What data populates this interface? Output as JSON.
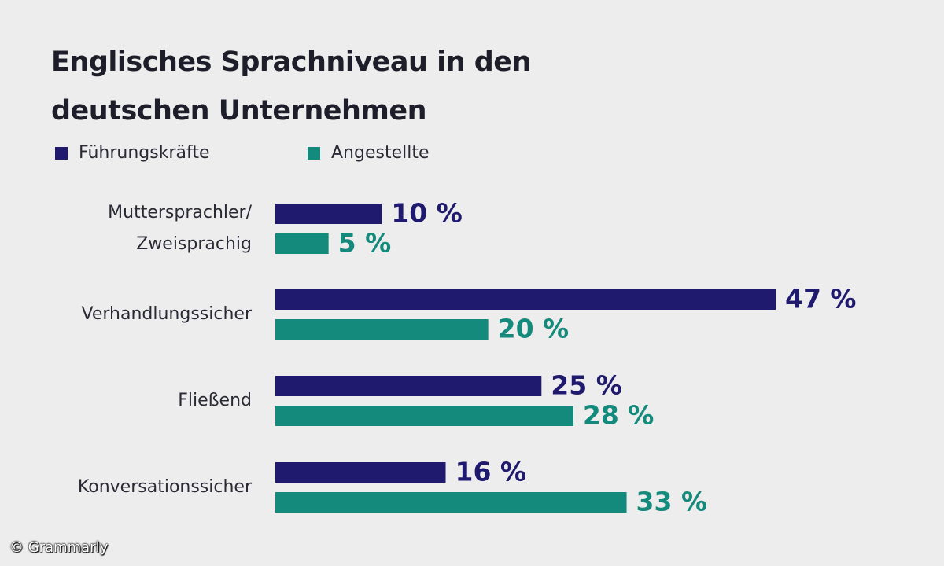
{
  "chart_data": {
    "type": "bar",
    "orientation": "horizontal",
    "title_lines": [
      "Englisches Sprachniveau in den",
      "deutschen Unternehmen"
    ],
    "title": "Englisches Sprachniveau in den deutschen Unternehmen",
    "categories": [
      [
        "Muttersprachler/",
        "Zweisprachig"
      ],
      [
        "Verhandlungssicher"
      ],
      [
        "Fließend"
      ],
      [
        "Konversationssicher"
      ]
    ],
    "series": [
      {
        "name": "Führungskräfte",
        "color": "#201a6e",
        "values": [
          10,
          47,
          25,
          16
        ],
        "labels": [
          "10 %",
          "47 %",
          "25 %",
          "16 %"
        ]
      },
      {
        "name": "Angestellte",
        "color": "#138a7c",
        "values": [
          5,
          20,
          28,
          33
        ],
        "labels": [
          "5 %",
          "20 %",
          "28 %",
          "33 %"
        ]
      }
    ],
    "xlim": [
      0,
      47
    ],
    "unit": "%",
    "legend_position": "top-left",
    "grid": false
  },
  "watermark": "© Grammarly"
}
